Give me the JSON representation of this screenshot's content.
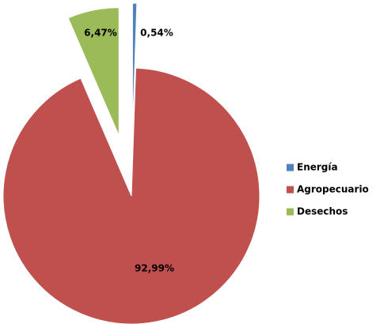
{
  "chart_data": {
    "type": "pie",
    "categories": [
      "Energía",
      "Agropecuario",
      "Desechos"
    ],
    "values": [
      0.54,
      92.99,
      6.47
    ],
    "value_labels": [
      "0,54%",
      "92,99%",
      "6,47%"
    ],
    "colors": [
      "#4f81bd",
      "#c0504d",
      "#9bbb59"
    ],
    "legend": "right"
  }
}
